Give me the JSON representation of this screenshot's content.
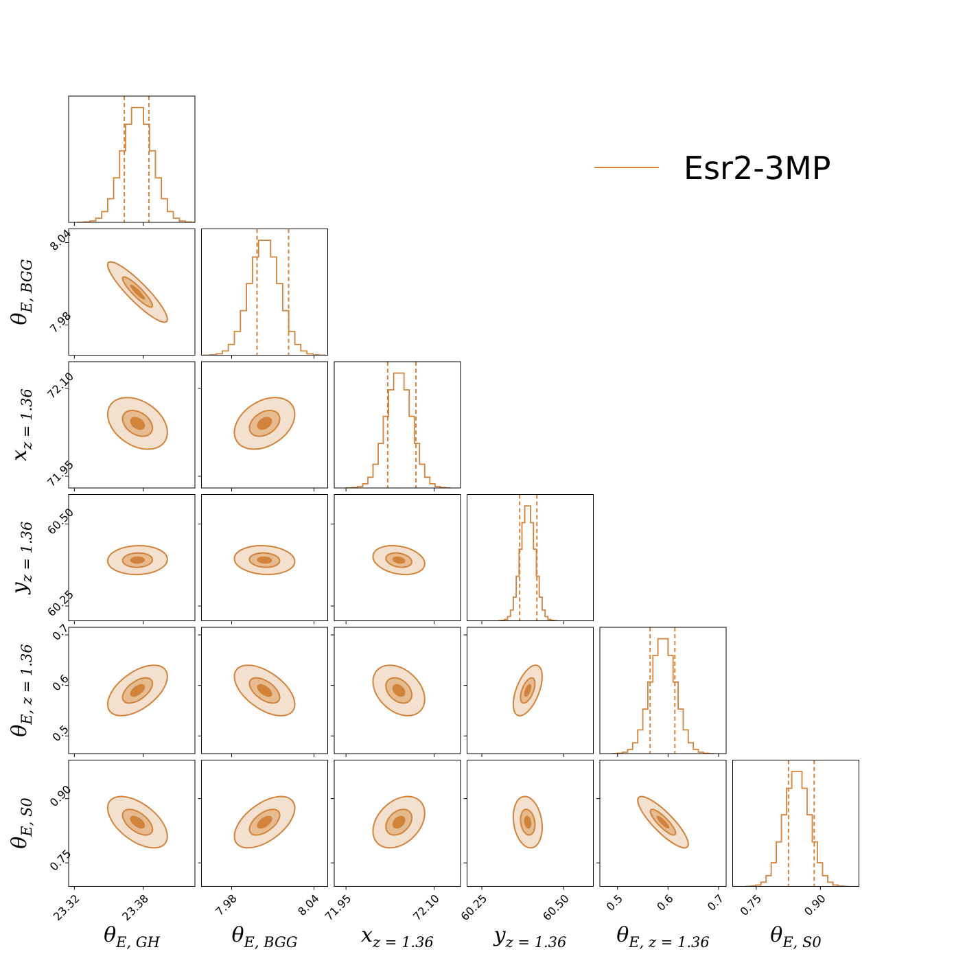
{
  "colors": {
    "accent": "#d2833b",
    "fill_outer": "#f3e0cf",
    "fill_mid": "#e6bb8f",
    "fill_inner": "#d2833b",
    "frame": "#000000"
  },
  "legend": {
    "label": "Esr2-3MP",
    "position": "top-right"
  },
  "chart_data": {
    "type": "corner",
    "parameters": [
      {
        "id": "theta_E_GH",
        "symbol": "θ",
        "sub": "E, GH",
        "range": [
          23.315,
          23.425
        ],
        "ticks": [
          23.32,
          23.38
        ],
        "tick_labels": [
          "23.32",
          "23.38"
        ],
        "mean": 23.375,
        "sd": 0.013,
        "quantiles": [
          23.3635,
          23.385
        ]
      },
      {
        "id": "theta_E_BGG",
        "symbol": "θ",
        "sub": "E, BGG",
        "range": [
          7.958,
          8.05
        ],
        "ticks": [
          7.98,
          8.04
        ],
        "tick_labels": [
          "7.98",
          "8.04"
        ],
        "mean": 8.004,
        "sd": 0.011,
        "quantiles": [
          7.9985,
          8.0215
        ]
      },
      {
        "id": "x_z136",
        "symbol": "x",
        "sub": "z = 1.36",
        "range": [
          71.93,
          72.145
        ],
        "ticks": [
          71.95,
          72.1
        ],
        "tick_labels": [
          "71.95",
          "72.10"
        ],
        "mean": 72.04,
        "sd": 0.022,
        "quantiles": [
          72.021,
          72.069
        ]
      },
      {
        "id": "y_z136",
        "symbol": "y",
        "sub": "z = 1.36",
        "range": [
          60.205,
          60.59
        ],
        "ticks": [
          60.25,
          60.5
        ],
        "tick_labels": [
          "60.25",
          "60.50"
        ],
        "mean": 60.39,
        "sd": 0.022,
        "quantiles": [
          60.3655,
          60.418
        ]
      },
      {
        "id": "theta_E_z136",
        "symbol": "θ",
        "sub": "E, z = 1.36",
        "range": [
          0.465,
          0.715
        ],
        "ticks": [
          0.5,
          0.6,
          0.7
        ],
        "tick_labels": [
          "0.5",
          "0.6",
          "0.7"
        ],
        "mean": 0.59,
        "sd": 0.025,
        "quantiles": [
          0.5645,
          0.6135
        ]
      },
      {
        "id": "theta_E_S0",
        "symbol": "θ",
        "sub": "E, S0",
        "range": [
          0.695,
          0.99
        ],
        "ticks": [
          0.75,
          0.9
        ],
        "tick_labels": [
          "0.75",
          "0.90"
        ],
        "mean": 0.845,
        "sd": 0.03,
        "quantiles": [
          0.8255,
          0.8855
        ]
      }
    ],
    "correlations": [
      {
        "pair": [
          1,
          0
        ],
        "rho": -0.9
      },
      {
        "pair": [
          2,
          0
        ],
        "rho": -0.35
      },
      {
        "pair": [
          2,
          1
        ],
        "rho": 0.35
      },
      {
        "pair": [
          3,
          0
        ],
        "rho": 0.05
      },
      {
        "pair": [
          3,
          1
        ],
        "rho": -0.1
      },
      {
        "pair": [
          3,
          2
        ],
        "rho": -0.25
      },
      {
        "pair": [
          4,
          0
        ],
        "rho": 0.55
      },
      {
        "pair": [
          4,
          1
        ],
        "rho": -0.55
      },
      {
        "pair": [
          4,
          2
        ],
        "rho": -0.35
      },
      {
        "pair": [
          4,
          3
        ],
        "rho": 0.55
      },
      {
        "pair": [
          5,
          0
        ],
        "rho": -0.55
      },
      {
        "pair": [
          5,
          1
        ],
        "rho": 0.55
      },
      {
        "pair": [
          5,
          2
        ],
        "rho": 0.35
      },
      {
        "pair": [
          5,
          3
        ],
        "rho": -0.2
      },
      {
        "pair": [
          5,
          4
        ],
        "rho": -0.85
      }
    ],
    "contour_levels_sigma": [
      0.5,
      1.0,
      2.0
    ],
    "histogram_bins": 20
  }
}
